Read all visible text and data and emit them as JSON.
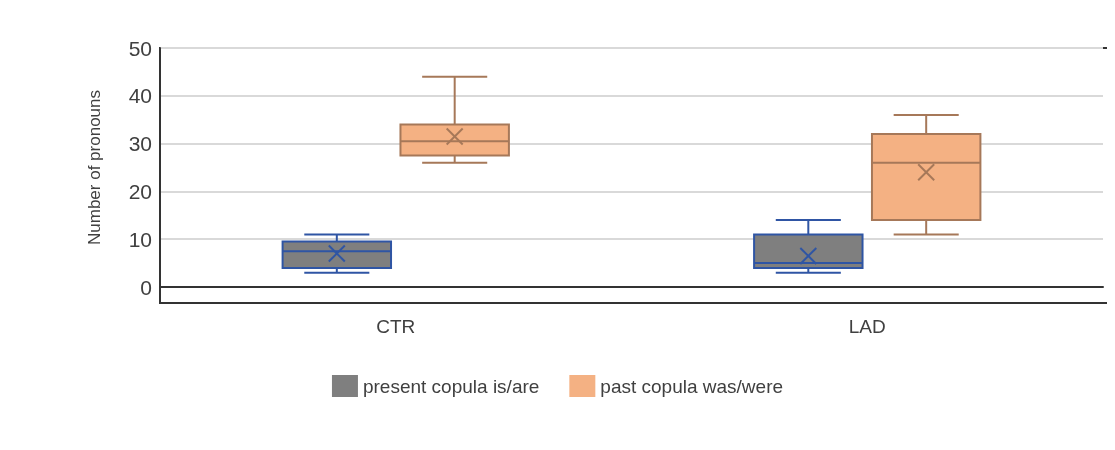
{
  "chart_data": {
    "type": "box",
    "ylabel": "Number of pronouns",
    "categories": [
      "CTR",
      "LAD"
    ],
    "ylim": [
      0,
      50
    ],
    "yticks": [
      0,
      10,
      20,
      30,
      40,
      50
    ],
    "grid": "y",
    "legend": "bottom",
    "marker": "cross",
    "series": [
      {
        "name": "present copula is/are",
        "color": "#7f7f7f",
        "boxes": [
          {
            "low": 3,
            "q1": 4,
            "median": 7.5,
            "q3": 9.5,
            "high": 11,
            "mean": 7
          },
          {
            "low": 3,
            "q1": 4,
            "median": 5,
            "q3": 11,
            "high": 14,
            "mean": 6.5
          }
        ]
      },
      {
        "name": "past copula was/were",
        "color": "#f4b183",
        "boxes": [
          {
            "low": 26,
            "q1": 27.5,
            "median": 30.5,
            "q3": 34,
            "high": 44,
            "mean": 31.5
          },
          {
            "low": 11,
            "q1": 14,
            "median": 26,
            "q3": 32,
            "high": 36,
            "mean": 24
          }
        ]
      }
    ]
  }
}
